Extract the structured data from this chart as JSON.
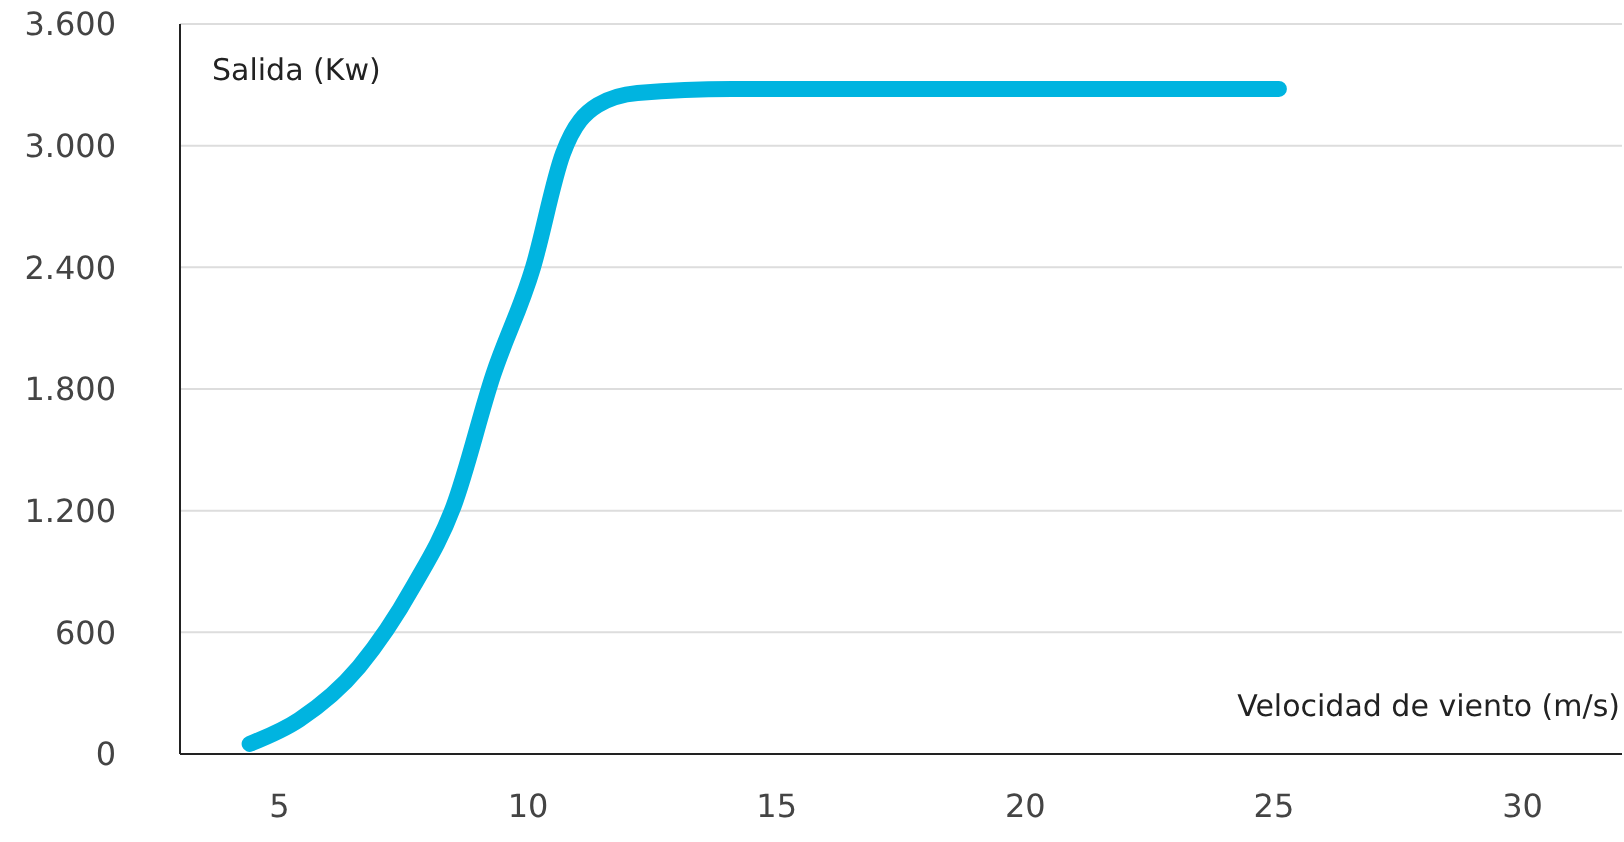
{
  "chart_data": {
    "type": "line",
    "xlabel": "Velocidad de viento (m/s)",
    "ylabel": "Salida (Kw)",
    "x": [
      4.4,
      5.4,
      6.6,
      7.7,
      8.5,
      9.3,
      10.1,
      10.7,
      11.4,
      12.2,
      14.1,
      25.1
    ],
    "series": [
      {
        "color": "#00b4e0",
        "values": [
          50,
          170,
          430,
          830,
          1220,
          1870,
          2400,
          2960,
          3200,
          3260,
          3280,
          3280
        ]
      }
    ],
    "xlim": [
      3,
      32
    ],
    "xticks": [
      5,
      10,
      15,
      20,
      25,
      30
    ],
    "ylim": [
      0,
      3600
    ],
    "yticks": [
      0,
      600,
      {
        "value": 1200,
        "label": "1.200"
      },
      {
        "value": 1800,
        "label": "1.800"
      },
      {
        "value": 2400,
        "label": "2.400"
      },
      {
        "value": 3000,
        "label": "3.000"
      },
      {
        "value": 3600,
        "label": "3.600"
      }
    ],
    "grid": "y",
    "marker": "none",
    "line_style": "solid"
  }
}
